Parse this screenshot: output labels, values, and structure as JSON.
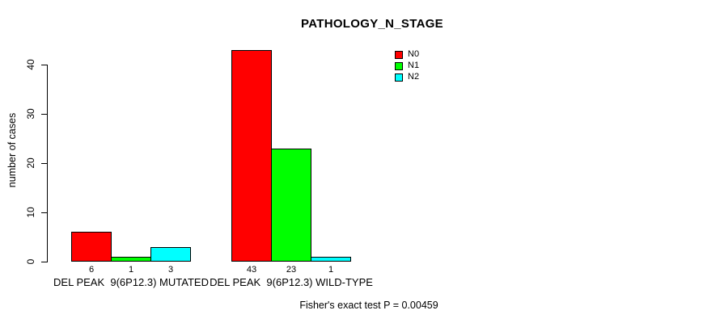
{
  "chart_data": {
    "type": "bar",
    "title": "PATHOLOGY_N_STAGE",
    "ylabel": "number of cases",
    "xlabel": "",
    "ylim": [
      0,
      43
    ],
    "yticks": [
      0,
      10,
      20,
      30,
      40
    ],
    "grid": false,
    "legend_position": "top-right",
    "categories": [
      "DEL PEAK  9(6P12.3) MUTATED",
      "DEL PEAK  9(6P12.3) WILD-TYPE"
    ],
    "series": [
      {
        "name": "N0",
        "color": "#FF0000",
        "values": [
          6,
          43
        ]
      },
      {
        "name": "N1",
        "color": "#00FF00",
        "values": [
          1,
          23
        ]
      },
      {
        "name": "N2",
        "color": "#00FFFF",
        "values": [
          3,
          1
        ]
      }
    ],
    "bar_value_labels": [
      [
        "6",
        "1",
        "3"
      ],
      [
        "43",
        "23",
        "1"
      ]
    ],
    "annotation": "Fisher's exact test P = 0.00459"
  }
}
